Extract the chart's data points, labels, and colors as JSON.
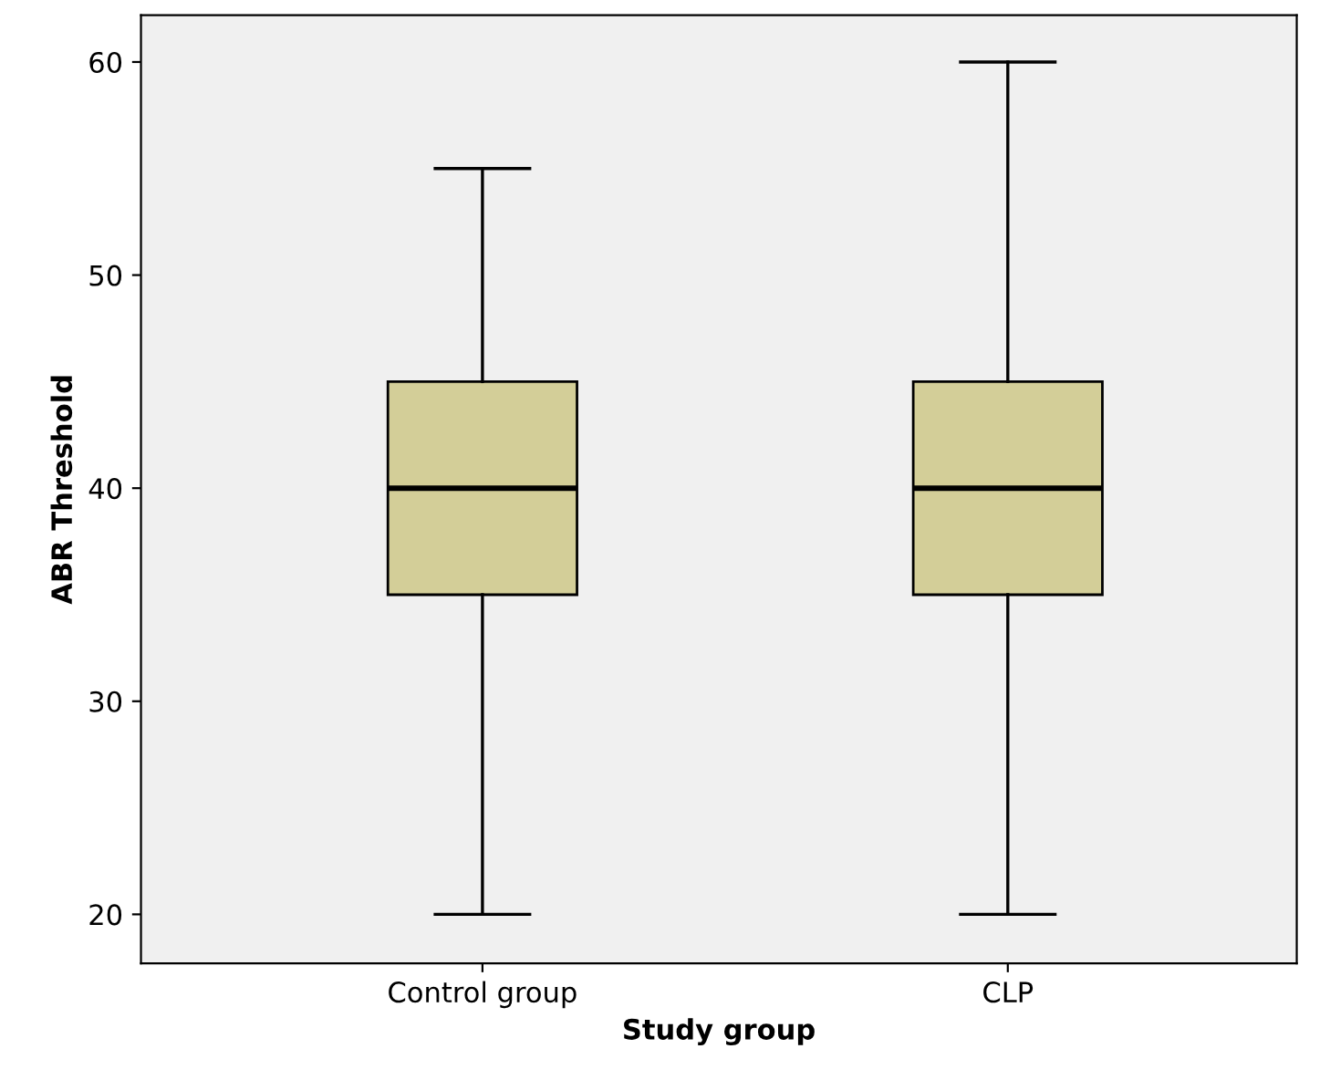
{
  "chart_data": {
    "type": "box",
    "xlabel": "Study group",
    "ylabel": "ABR Threshold",
    "categories": [
      "Control group",
      "CLP"
    ],
    "boxes": [
      {
        "low": 20,
        "q1": 35,
        "median": 40,
        "q3": 45,
        "high": 55
      },
      {
        "low": 20,
        "q1": 35,
        "median": 40,
        "q3": 45,
        "high": 60
      }
    ],
    "color": "#d3ce98",
    "ylim": [
      17.7,
      62.2
    ],
    "yticks": [
      20,
      30,
      40,
      50,
      60
    ],
    "grid": false
  }
}
